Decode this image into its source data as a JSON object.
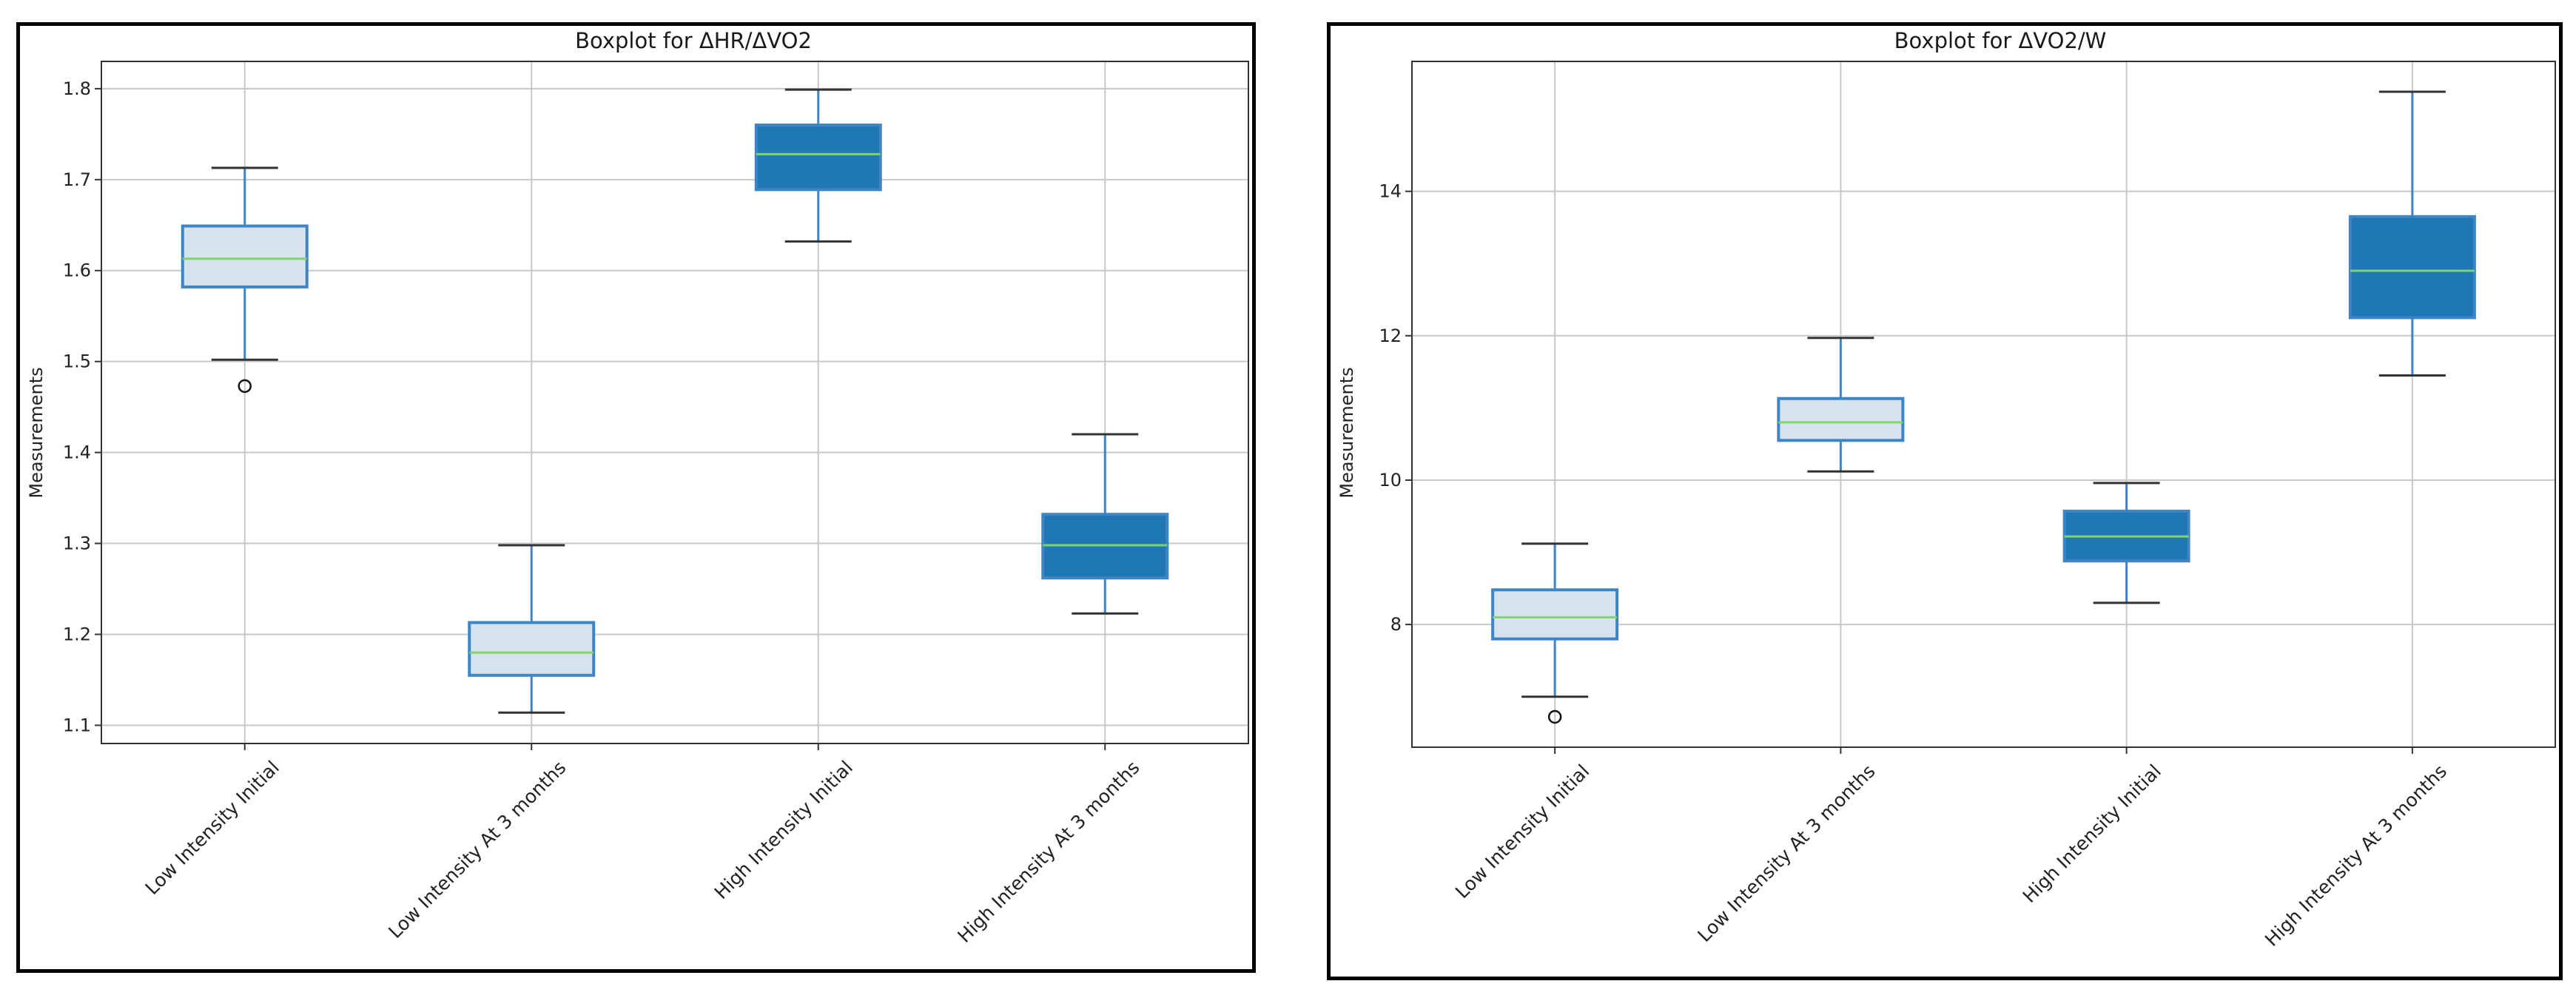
{
  "charts": [
    {
      "id": "hr-vo2",
      "chart_data": {
        "type": "boxplot",
        "title": "Boxplot for ΔHR/ΔVO2",
        "xlabel": "",
        "ylabel": "Measurements",
        "ylim": [
          1.08,
          1.83
        ],
        "yticks": [
          1.1,
          1.2,
          1.3,
          1.4,
          1.5,
          1.6,
          1.7,
          1.8
        ],
        "ytick_labels": [
          "1.1",
          "1.2",
          "1.3",
          "1.4",
          "1.5",
          "1.6",
          "1.7",
          "1.8"
        ],
        "grid": true,
        "categories": [
          "Low Intensity Initial",
          "Low Intensity At 3 months",
          "High Intensity Initial",
          "High Intensity At 3 months"
        ],
        "boxes": [
          {
            "label": "Low Intensity Initial",
            "whisker_low": 1.502,
            "q1": 1.582,
            "median": 1.613,
            "q3": 1.649,
            "whisker_high": 1.713,
            "outliers": [
              1.473
            ],
            "fill": "#d6e3ef"
          },
          {
            "label": "Low Intensity At 3 months",
            "whisker_low": 1.114,
            "q1": 1.155,
            "median": 1.18,
            "q3": 1.213,
            "whisker_high": 1.298,
            "outliers": [],
            "fill": "#d6e3ef"
          },
          {
            "label": "High Intensity Initial",
            "whisker_low": 1.632,
            "q1": 1.689,
            "median": 1.728,
            "q3": 1.76,
            "whisker_high": 1.799,
            "outliers": [],
            "fill": "#1f77b4"
          },
          {
            "label": "High Intensity At 3 months",
            "whisker_low": 1.223,
            "q1": 1.262,
            "median": 1.298,
            "q3": 1.332,
            "whisker_high": 1.42,
            "outliers": [],
            "fill": "#1f77b4"
          }
        ]
      }
    },
    {
      "id": "vo2-w",
      "chart_data": {
        "type": "boxplot",
        "title": "Boxplot for ΔVO2/W",
        "xlabel": "",
        "ylabel": "Measurements",
        "ylim": [
          6.3,
          15.8
        ],
        "yticks": [
          8,
          10,
          12,
          14
        ],
        "ytick_labels": [
          "8",
          "10",
          "12",
          "14"
        ],
        "grid": true,
        "categories": [
          "Low Intensity Initial",
          "Low Intensity At 3 months",
          "High Intensity Initial",
          "High Intensity At 3 months"
        ],
        "boxes": [
          {
            "label": "Low Intensity Initial",
            "whisker_low": 7.0,
            "q1": 7.8,
            "median": 8.1,
            "q3": 8.48,
            "whisker_high": 9.12,
            "outliers": [
              6.72
            ],
            "fill": "#d6e3ef"
          },
          {
            "label": "Low Intensity At 3 months",
            "whisker_low": 10.12,
            "q1": 10.55,
            "median": 10.8,
            "q3": 11.13,
            "whisker_high": 11.97,
            "outliers": [],
            "fill": "#d6e3ef"
          },
          {
            "label": "High Intensity Initial",
            "whisker_low": 8.3,
            "q1": 8.88,
            "median": 9.22,
            "q3": 9.57,
            "whisker_high": 9.96,
            "outliers": [],
            "fill": "#1f77b4"
          },
          {
            "label": "High Intensity At 3 months",
            "whisker_low": 11.45,
            "q1": 12.25,
            "median": 12.9,
            "q3": 13.65,
            "whisker_high": 15.38,
            "outliers": [],
            "fill": "#1f77b4"
          }
        ]
      }
    }
  ],
  "colors": {
    "box_edge": "#3d85c6",
    "median": "#7fd36b",
    "whisker_cap": "#333333",
    "grid": "#c8c8c8",
    "axes": "#333333"
  }
}
